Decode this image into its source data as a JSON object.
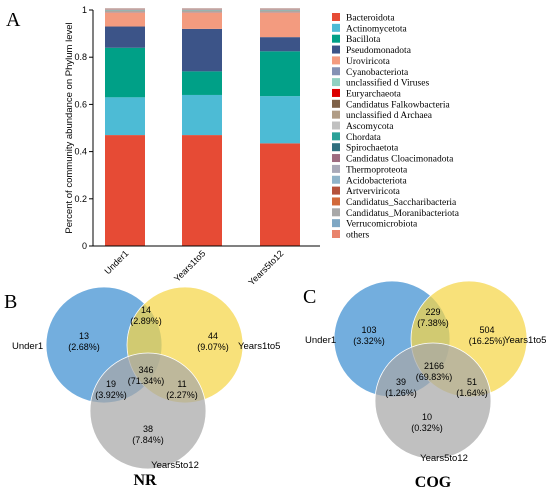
{
  "chart_data": [
    {
      "panel": "A",
      "type": "bar",
      "stacked": true,
      "title": "",
      "xlabel": "",
      "ylabel": "Percent of community abundance on Phylum level",
      "ylim": [
        0,
        1
      ],
      "yticks": [
        "0",
        "0.2",
        "0.4",
        "0.6",
        "0.8",
        "1"
      ],
      "categories": [
        "Under1",
        "Years1to5",
        "Years5to12"
      ],
      "legend_position": "right",
      "series": [
        {
          "name": "Bacteroidota",
          "color": "#E64B35",
          "values": [
            0.47,
            0.47,
            0.435
          ]
        },
        {
          "name": "Actinomycetota",
          "color": "#4DBBD5",
          "values": [
            0.16,
            0.17,
            0.2
          ]
        },
        {
          "name": "Bacillota",
          "color": "#00A087",
          "values": [
            0.21,
            0.1,
            0.19
          ]
        },
        {
          "name": "Pseudomonadota",
          "color": "#3C5488",
          "values": [
            0.09,
            0.18,
            0.06
          ]
        },
        {
          "name": "Uroviricota",
          "color": "#F39B7F",
          "values": [
            0.06,
            0.07,
            0.105
          ]
        },
        {
          "name": "Cyanobacteriota",
          "color": "#8491B4",
          "values": [
            0.002,
            0.002,
            0.002
          ]
        },
        {
          "name": "unclassified d Viruses",
          "color": "#91D1C2",
          "values": [
            0.002,
            0.002,
            0.002
          ]
        },
        {
          "name": "Euryarchaeota",
          "color": "#DC0000",
          "values": [
            0.001,
            0.001,
            0.001
          ]
        },
        {
          "name": "Candidatus Falkowbacteria",
          "color": "#7E6148",
          "values": [
            0.001,
            0.001,
            0.001
          ]
        },
        {
          "name": "unclassified d Archaea",
          "color": "#B09C85",
          "values": [
            0.001,
            0.001,
            0.001
          ]
        },
        {
          "name": "Ascomycota",
          "color": "#C0C0C0",
          "values": [
            0.001,
            0.001,
            0.001
          ]
        },
        {
          "name": "Chordata",
          "color": "#2AA198",
          "values": [
            0.001,
            0.001,
            0.001
          ]
        },
        {
          "name": "Spirochaetota",
          "color": "#2F6F7E",
          "values": [
            0.001,
            0.001,
            0.001
          ]
        },
        {
          "name": "Candidatus Cloacimonadota",
          "color": "#9E6B80",
          "values": [
            0.001,
            0.001,
            0.001
          ]
        },
        {
          "name": "Thermoproteota",
          "color": "#A9A9B8",
          "values": [
            0.001,
            0.001,
            0.001
          ]
        },
        {
          "name": "Acidobacteriota",
          "color": "#8FB3C9",
          "values": [
            0.001,
            0.001,
            0.001
          ]
        },
        {
          "name": "Artverviricota",
          "color": "#B5523B",
          "values": [
            0.001,
            0.001,
            0.001
          ]
        },
        {
          "name": "Candidatus_Saccharibacteria",
          "color": "#D2693A",
          "values": [
            0.001,
            0.001,
            0.001
          ]
        },
        {
          "name": "Candidatus_Moranibacteriota",
          "color": "#A8A8A8",
          "values": [
            0.001,
            0.001,
            0.001
          ]
        },
        {
          "name": "Verrucomicrobiota",
          "color": "#7EA7C4",
          "values": [
            0.001,
            0.001,
            0.001
          ]
        },
        {
          "name": "others",
          "color": "#E9836C",
          "values": [
            0.001,
            0.001,
            0.001
          ]
        }
      ]
    },
    {
      "panel": "B",
      "type": "venn",
      "title": "NR",
      "sets": [
        {
          "name": "Under1",
          "color": "#3D8FD1"
        },
        {
          "name": "Years1to5",
          "color": "#F5D547"
        },
        {
          "name": "Years5to12",
          "color": "#A8A8A8"
        }
      ],
      "regions": [
        {
          "sets": [
            "Under1"
          ],
          "count": "13",
          "percent": "(2.68%)"
        },
        {
          "sets": [
            "Under1",
            "Years1to5"
          ],
          "count": "14",
          "percent": "(2.89%)"
        },
        {
          "sets": [
            "Years1to5"
          ],
          "count": "44",
          "percent": "(9.07%)"
        },
        {
          "sets": [
            "Under1",
            "Years1to5",
            "Years5to12"
          ],
          "count": "346",
          "percent": "(71.34%)"
        },
        {
          "sets": [
            "Under1",
            "Years5to12"
          ],
          "count": "19",
          "percent": "(3.92%)"
        },
        {
          "sets": [
            "Years1to5",
            "Years5to12"
          ],
          "count": "11",
          "percent": "(2.27%)"
        },
        {
          "sets": [
            "Years5to12"
          ],
          "count": "38",
          "percent": "(7.84%)"
        }
      ]
    },
    {
      "panel": "C",
      "type": "venn",
      "title": "COG",
      "sets": [
        {
          "name": "Under1",
          "color": "#3D8FD1"
        },
        {
          "name": "Years1to5",
          "color": "#F5D547"
        },
        {
          "name": "Years5to12",
          "color": "#A8A8A8"
        }
      ],
      "regions": [
        {
          "sets": [
            "Under1"
          ],
          "count": "103",
          "percent": "(3.32%)"
        },
        {
          "sets": [
            "Under1",
            "Years1to5"
          ],
          "count": "229",
          "percent": "(7.38%)"
        },
        {
          "sets": [
            "Years1to5"
          ],
          "count": "504",
          "percent": "(16.25%)"
        },
        {
          "sets": [
            "Under1",
            "Years1to5",
            "Years5to12"
          ],
          "count": "2166",
          "percent": "(69.83%)"
        },
        {
          "sets": [
            "Under1",
            "Years5to12"
          ],
          "count": "39",
          "percent": "(1.26%)"
        },
        {
          "sets": [
            "Years1to5",
            "Years5to12"
          ],
          "count": "51",
          "percent": "(1.64%)"
        },
        {
          "sets": [
            "Years5to12"
          ],
          "count": "10",
          "percent": "(0.32%)"
        }
      ]
    }
  ]
}
